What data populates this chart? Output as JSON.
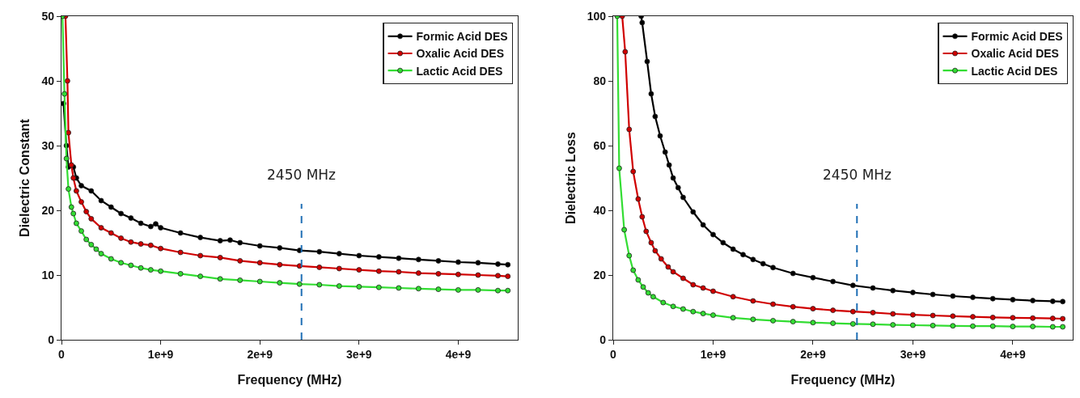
{
  "chart_data": [
    {
      "type": "line",
      "xlabel": "Frequency (MHz)",
      "ylabel": "Dielectric Constant",
      "xlim": [
        0,
        4600000000.0
      ],
      "xticks": [
        0,
        {
          "value": 1000000000.0,
          "label": "1e+9"
        },
        {
          "value": 2000000000.0,
          "label": "2e+9"
        },
        {
          "value": 3000000000.0,
          "label": "3e+9"
        },
        {
          "value": 4000000000.0,
          "label": "4e+9"
        }
      ],
      "ylim": [
        0,
        50
      ],
      "yticks": [
        0,
        10,
        20,
        30,
        40,
        50
      ],
      "grid": false,
      "legend": "top right",
      "marker": "circle",
      "line_style": "solid",
      "ref_lines": [
        {
          "axis": "x",
          "value": 2420000000.0,
          "label": "2450 MHz",
          "color": "#1f6fb5",
          "line_style": "dashed"
        }
      ],
      "series": [
        {
          "name": "Formic Acid DES",
          "color": "#000000",
          "x": [
            20000000.0,
            50000000.0,
            70000000.0,
            120000000.0,
            150000000.0,
            200000000.0,
            300000000.0,
            400000000.0,
            500000000.0,
            600000000.0,
            700000000.0,
            800000000.0,
            900000000.0,
            950000000.0,
            1000000000.0,
            1200000000.0,
            1400000000.0,
            1600000000.0,
            1700000000.0,
            1800000000.0,
            2000000000.0,
            2200000000.0,
            2400000000.0,
            2600000000.0,
            2800000000.0,
            3000000000.0,
            3200000000.0,
            3400000000.0,
            3600000000.0,
            3800000000.0,
            4000000000.0,
            4200000000.0,
            4400000000.0,
            4500000000.0
          ],
          "values": [
            36.5,
            30,
            26.7,
            26.7,
            25,
            23.8,
            23,
            21.5,
            20.5,
            19.5,
            18.8,
            18,
            17.5,
            17.9,
            17.3,
            16.5,
            15.8,
            15.3,
            15.4,
            15,
            14.5,
            14.2,
            13.8,
            13.6,
            13.3,
            13,
            12.8,
            12.6,
            12.4,
            12.2,
            12,
            11.9,
            11.7,
            11.6
          ]
        },
        {
          "name": "Oxalic Acid DES",
          "color": "#d00000",
          "x": [
            40000000.0,
            60000000.0,
            70000000.0,
            100000000.0,
            120000000.0,
            150000000.0,
            200000000.0,
            250000000.0,
            300000000.0,
            400000000.0,
            500000000.0,
            600000000.0,
            700000000.0,
            800000000.0,
            900000000.0,
            1000000000.0,
            1200000000.0,
            1400000000.0,
            1600000000.0,
            1800000000.0,
            2000000000.0,
            2200000000.0,
            2400000000.0,
            2600000000.0,
            2800000000.0,
            3000000000.0,
            3200000000.0,
            3400000000.0,
            3600000000.0,
            3800000000.0,
            4000000000.0,
            4200000000.0,
            4400000000.0,
            4500000000.0
          ],
          "values": [
            50,
            40,
            32,
            27,
            25,
            23,
            21.3,
            19.8,
            18.7,
            17.3,
            16.5,
            15.7,
            15.1,
            14.8,
            14.6,
            14.1,
            13.5,
            13,
            12.7,
            12.2,
            11.9,
            11.6,
            11.4,
            11.2,
            11,
            10.8,
            10.6,
            10.5,
            10.3,
            10.2,
            10.1,
            10,
            9.9,
            9.8
          ]
        },
        {
          "name": "Lactic Acid DES",
          "color": "#33dd33",
          "x": [
            10000000.0,
            30000000.0,
            50000000.0,
            70000000.0,
            100000000.0,
            120000000.0,
            150000000.0,
            200000000.0,
            250000000.0,
            300000000.0,
            350000000.0,
            400000000.0,
            500000000.0,
            600000000.0,
            700000000.0,
            800000000.0,
            900000000.0,
            1000000000.0,
            1200000000.0,
            1400000000.0,
            1600000000.0,
            1800000000.0,
            2000000000.0,
            2200000000.0,
            2400000000.0,
            2600000000.0,
            2800000000.0,
            3000000000.0,
            3200000000.0,
            3400000000.0,
            3600000000.0,
            3800000000.0,
            4000000000.0,
            4200000000.0,
            4400000000.0,
            4500000000.0
          ],
          "values": [
            50,
            38,
            28,
            23.3,
            20.5,
            19.5,
            18,
            16.8,
            15.5,
            14.7,
            14,
            13.3,
            12.5,
            11.9,
            11.5,
            11.1,
            10.8,
            10.6,
            10.2,
            9.8,
            9.4,
            9.2,
            9,
            8.8,
            8.6,
            8.5,
            8.3,
            8.2,
            8.1,
            8,
            7.9,
            7.8,
            7.7,
            7.7,
            7.6,
            7.6
          ]
        }
      ]
    },
    {
      "type": "line",
      "xlabel": "Frequency (MHz)",
      "ylabel": "Dielectric Loss",
      "xlim": [
        0,
        4600000000.0
      ],
      "xticks": [
        0,
        {
          "value": 1000000000.0,
          "label": "1e+9"
        },
        {
          "value": 2000000000.0,
          "label": "2e+9"
        },
        {
          "value": 3000000000.0,
          "label": "3e+9"
        },
        {
          "value": 4000000000.0,
          "label": "4e+9"
        }
      ],
      "ylim": [
        0,
        100
      ],
      "yticks": [
        0,
        20,
        40,
        60,
        80,
        100
      ],
      "grid": false,
      "legend": "top right",
      "marker": "circle",
      "line_style": "solid",
      "ref_lines": [
        {
          "axis": "x",
          "value": 2440000000.0,
          "label": "2450 MHz",
          "color": "#1f6fb5",
          "line_style": "dashed"
        }
      ],
      "series": [
        {
          "name": "Formic Acid DES",
          "color": "#000000",
          "x": [
            280000000.0,
            290000000.0,
            340000000.0,
            380000000.0,
            420000000.0,
            470000000.0,
            520000000.0,
            560000000.0,
            600000000.0,
            650000000.0,
            700000000.0,
            800000000.0,
            900000000.0,
            1000000000.0,
            1100000000.0,
            1200000000.0,
            1300000000.0,
            1400000000.0,
            1500000000.0,
            1600000000.0,
            1800000000.0,
            2000000000.0,
            2200000000.0,
            2400000000.0,
            2600000000.0,
            2800000000.0,
            3000000000.0,
            3200000000.0,
            3400000000.0,
            3600000000.0,
            3800000000.0,
            4000000000.0,
            4200000000.0,
            4400000000.0,
            4500000000.0
          ],
          "values": [
            100,
            98,
            86,
            76,
            69,
            63,
            58,
            54,
            50,
            47,
            44,
            39.5,
            35.5,
            32.5,
            30,
            28,
            26.3,
            24.8,
            23.5,
            22.3,
            20.5,
            19.2,
            18,
            16.8,
            16,
            15.2,
            14.6,
            14,
            13.5,
            13.1,
            12.7,
            12.4,
            12.1,
            11.9,
            11.8
          ]
        },
        {
          "name": "Oxalic Acid DES",
          "color": "#d00000",
          "x": [
            90000000.0,
            120000000.0,
            160000000.0,
            200000000.0,
            250000000.0,
            290000000.0,
            330000000.0,
            380000000.0,
            420000000.0,
            480000000.0,
            550000000.0,
            600000000.0,
            700000000.0,
            800000000.0,
            900000000.0,
            1000000000.0,
            1200000000.0,
            1400000000.0,
            1600000000.0,
            1800000000.0,
            2000000000.0,
            2200000000.0,
            2400000000.0,
            2600000000.0,
            2800000000.0,
            3000000000.0,
            3200000000.0,
            3400000000.0,
            3600000000.0,
            3800000000.0,
            4000000000.0,
            4200000000.0,
            4400000000.0,
            4500000000.0
          ],
          "values": [
            100,
            89,
            65,
            52,
            43.5,
            38,
            33.5,
            30,
            27.5,
            25,
            22.5,
            21,
            19,
            17,
            16,
            15,
            13.3,
            12,
            11,
            10.2,
            9.6,
            9.1,
            8.7,
            8.4,
            8,
            7.7,
            7.5,
            7.3,
            7.1,
            6.9,
            6.8,
            6.7,
            6.6,
            6.5
          ]
        },
        {
          "name": "Lactic Acid DES",
          "color": "#33dd33",
          "x": [
            40000000.0,
            60000000.0,
            110000000.0,
            160000000.0,
            200000000.0,
            250000000.0,
            300000000.0,
            350000000.0,
            400000000.0,
            500000000.0,
            600000000.0,
            700000000.0,
            800000000.0,
            900000000.0,
            1000000000.0,
            1200000000.0,
            1400000000.0,
            1600000000.0,
            1800000000.0,
            2000000000.0,
            2200000000.0,
            2400000000.0,
            2600000000.0,
            2800000000.0,
            3000000000.0,
            3200000000.0,
            3400000000.0,
            3600000000.0,
            3800000000.0,
            4000000000.0,
            4200000000.0,
            4400000000.0,
            4500000000.0
          ],
          "values": [
            100,
            53,
            34,
            26,
            21.5,
            18.5,
            16.3,
            14.5,
            13.3,
            11.5,
            10.3,
            9.5,
            8.7,
            8.1,
            7.6,
            6.8,
            6.3,
            5.9,
            5.6,
            5.3,
            5.1,
            4.9,
            4.8,
            4.6,
            4.5,
            4.4,
            4.3,
            4.2,
            4.2,
            4.1,
            4.1,
            4.0,
            4.0
          ]
        }
      ]
    }
  ]
}
